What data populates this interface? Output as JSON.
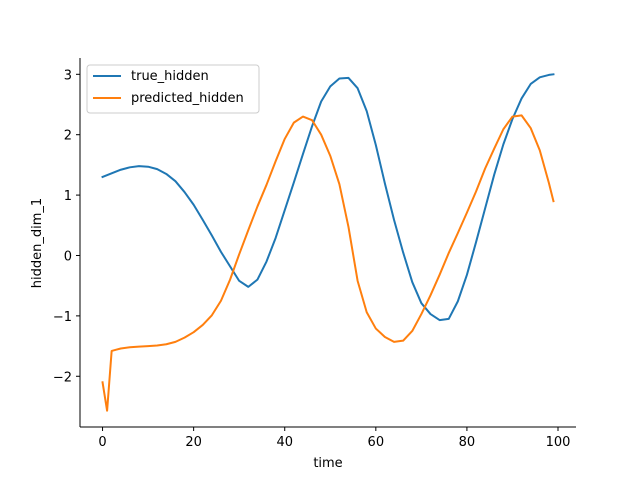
{
  "chart_data": {
    "type": "line",
    "xlabel": "time",
    "ylabel": "hidden_dim_1",
    "xlim": [
      -4.95,
      103.95
    ],
    "ylim": [
      -2.84,
      3.27
    ],
    "xticks": [
      0,
      20,
      40,
      60,
      80,
      100
    ],
    "yticks": [
      3,
      2,
      1,
      0,
      -1,
      -2
    ],
    "ytick_labels": [
      "3",
      "2",
      "1",
      "0",
      "−1",
      "−2"
    ],
    "grid": false,
    "legend": "top-left",
    "series": [
      {
        "name": "true_hidden",
        "color": "#1f77b4",
        "x": [
          0,
          2,
          4,
          6,
          8,
          10,
          12,
          14,
          16,
          18,
          20,
          22,
          24,
          26,
          28,
          30,
          32,
          34,
          36,
          38,
          40,
          42,
          44,
          46,
          48,
          50,
          52,
          54,
          56,
          58,
          60,
          62,
          64,
          66,
          68,
          70,
          72,
          74,
          76,
          78,
          80,
          82,
          84,
          86,
          88,
          90,
          92,
          94,
          96,
          98,
          99
        ],
        "y": [
          1.3,
          1.36,
          1.42,
          1.46,
          1.48,
          1.47,
          1.43,
          1.35,
          1.23,
          1.05,
          0.84,
          0.59,
          0.33,
          0.06,
          -0.18,
          -0.42,
          -0.52,
          -0.4,
          -0.1,
          0.29,
          0.75,
          1.21,
          1.68,
          2.14,
          2.55,
          2.8,
          2.93,
          2.94,
          2.77,
          2.39,
          1.83,
          1.19,
          0.59,
          0.05,
          -0.44,
          -0.79,
          -0.97,
          -1.07,
          -1.05,
          -0.76,
          -0.32,
          0.22,
          0.78,
          1.34,
          1.84,
          2.26,
          2.6,
          2.84,
          2.95,
          2.99,
          3.0
        ]
      },
      {
        "name": "predicted_hidden",
        "color": "#ff7f0e",
        "x": [
          0,
          1,
          2,
          3,
          4,
          6,
          8,
          10,
          12,
          14,
          16,
          18,
          20,
          22,
          24,
          26,
          28,
          30,
          32,
          34,
          36,
          38,
          40,
          42,
          44,
          46,
          48,
          50,
          52,
          54,
          56,
          58,
          60,
          62,
          64,
          66,
          68,
          70,
          72,
          74,
          76,
          78,
          80,
          82,
          84,
          86,
          88,
          90,
          92,
          94,
          96,
          98,
          99
        ],
        "y": [
          -2.1,
          -2.57,
          -1.58,
          -1.56,
          -1.54,
          -1.52,
          -1.51,
          -1.5,
          -1.49,
          -1.47,
          -1.43,
          -1.36,
          -1.27,
          -1.15,
          -0.99,
          -0.75,
          -0.4,
          0.02,
          0.42,
          0.81,
          1.17,
          1.56,
          1.93,
          2.2,
          2.3,
          2.24,
          2.0,
          1.65,
          1.18,
          0.47,
          -0.42,
          -0.94,
          -1.21,
          -1.35,
          -1.43,
          -1.41,
          -1.25,
          -0.97,
          -0.66,
          -0.32,
          0.04,
          0.37,
          0.71,
          1.06,
          1.44,
          1.77,
          2.09,
          2.3,
          2.32,
          2.11,
          1.74,
          1.2,
          0.9
        ]
      }
    ]
  }
}
